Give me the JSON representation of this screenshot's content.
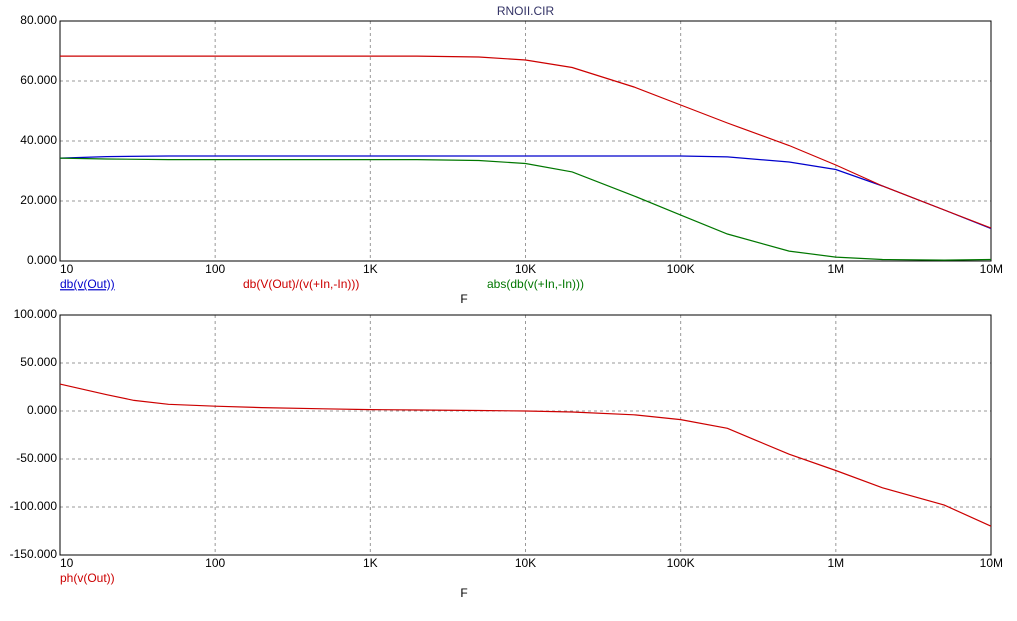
{
  "chart_data": [
    {
      "type": "line",
      "title": "RNOII.CIR",
      "xlabel": "F",
      "xscale": "log",
      "grid": true,
      "xlim": [
        10,
        10000000
      ],
      "xticks": [
        10,
        100,
        {
          "value": 1000,
          "label": "1K"
        },
        {
          "value": 10000,
          "label": "10K"
        },
        {
          "value": 100000,
          "label": "100K"
        },
        {
          "value": 1000000,
          "label": "1M"
        },
        {
          "value": 10000000,
          "label": "10M"
        }
      ],
      "ylim": [
        0,
        80
      ],
      "yticks": [
        {
          "value": 0,
          "label": "0.000"
        },
        {
          "value": 20,
          "label": "20.000"
        },
        {
          "value": 40,
          "label": "40.000"
        },
        {
          "value": 60,
          "label": "60.000"
        },
        {
          "value": 80,
          "label": "80.000"
        }
      ],
      "x": [
        10,
        20,
        50,
        100,
        200,
        500,
        1000,
        2000,
        5000,
        10000,
        20000,
        50000,
        100000,
        200000,
        500000,
        1000000,
        2000000,
        5000000,
        10000000
      ],
      "series": [
        {
          "name": "db(v(Out))",
          "color": "#0000cc",
          "values": [
            34.3,
            34.8,
            35,
            35,
            35,
            35,
            35,
            35,
            35,
            35,
            35,
            35,
            35,
            34.7,
            33,
            30.5,
            25,
            17,
            10.8
          ]
        },
        {
          "name": "db(V(Out)/(v(+In,-In)))",
          "color": "#cc0000",
          "values": [
            68.3,
            68.3,
            68.3,
            68.3,
            68.3,
            68.3,
            68.3,
            68.3,
            68,
            67,
            64.5,
            58,
            52,
            46,
            38.5,
            32,
            25,
            17,
            11
          ]
        },
        {
          "name": "abs(db(v(+In,-In)))",
          "color": "#007700",
          "values": [
            34.3,
            34,
            33.8,
            33.8,
            33.8,
            33.8,
            33.8,
            33.8,
            33.5,
            32.5,
            29.7,
            21.7,
            15.3,
            9,
            3.3,
            1.3,
            0.5,
            0.3,
            0.5
          ]
        }
      ]
    },
    {
      "type": "line",
      "xlabel": "F",
      "xscale": "log",
      "grid": true,
      "xlim": [
        10,
        10000000
      ],
      "xticks": [
        10,
        100,
        {
          "value": 1000,
          "label": "1K"
        },
        {
          "value": 10000,
          "label": "10K"
        },
        {
          "value": 100000,
          "label": "100K"
        },
        {
          "value": 1000000,
          "label": "1M"
        },
        {
          "value": 10000000,
          "label": "10M"
        }
      ],
      "ylim": [
        -150,
        100
      ],
      "yticks": [
        {
          "value": -150,
          "label": "-150.000"
        },
        {
          "value": -100,
          "label": "-100.000"
        },
        {
          "value": -50,
          "label": "-50.000"
        },
        {
          "value": 0,
          "label": "0.000"
        },
        {
          "value": 50,
          "label": "50.000"
        },
        {
          "value": 100,
          "label": "100.000"
        }
      ],
      "x": [
        10,
        20,
        30,
        50,
        100,
        200,
        500,
        1000,
        2000,
        5000,
        10000,
        20000,
        50000,
        100000,
        200000,
        300000,
        500000,
        1000000,
        2000000,
        5000000,
        10000000
      ],
      "series": [
        {
          "name": "ph(v(Out))",
          "color": "#cc0000",
          "values": [
            28,
            17,
            11,
            7,
            5,
            3.5,
            2.3,
            1.5,
            1,
            0.5,
            0,
            -1,
            -4,
            -9,
            -18,
            -30,
            -45,
            -62,
            -80,
            -98,
            -120
          ]
        }
      ]
    }
  ]
}
